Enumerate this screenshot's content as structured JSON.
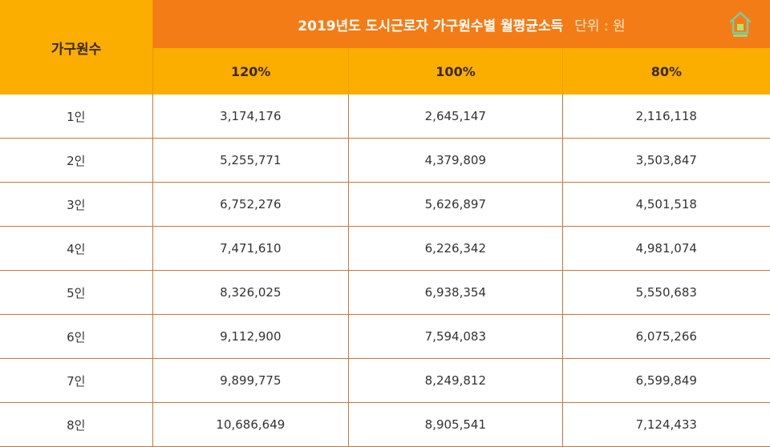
{
  "header": {
    "row_label": "가구원수",
    "title": "2019년도 도시근로자 가구원수별 월평균소득",
    "unit": "단위 : 원",
    "logo": "house-logo-icon",
    "columns": [
      "120%",
      "100%",
      "80%"
    ]
  },
  "rows": [
    {
      "label": "1인",
      "v120": "3,174,176",
      "v100": "2,645,147",
      "v80": "2,116,118"
    },
    {
      "label": "2인",
      "v120": "5,255,771",
      "v100": "4,379,809",
      "v80": "3,503,847"
    },
    {
      "label": "3인",
      "v120": "6,752,276",
      "v100": "5,626,897",
      "v80": "4,501,518"
    },
    {
      "label": "4인",
      "v120": "7,471,610",
      "v100": "6,226,342",
      "v80": "4,981,074"
    },
    {
      "label": "5인",
      "v120": "8,326,025",
      "v100": "6,938,354",
      "v80": "5,550,683"
    },
    {
      "label": "6인",
      "v120": "9,112,900",
      "v100": "7,594,083",
      "v80": "6,075,266"
    },
    {
      "label": "7인",
      "v120": "9,899,775",
      "v100": "8,249,812",
      "v80": "6,599,849"
    },
    {
      "label": "8인",
      "v120": "10,686,649",
      "v100": "8,905,541",
      "v80": "7,124,433"
    }
  ],
  "colors": {
    "title_bg": "#f47c16",
    "header_bg": "#fbae00",
    "grid_line": "#c9773a"
  }
}
